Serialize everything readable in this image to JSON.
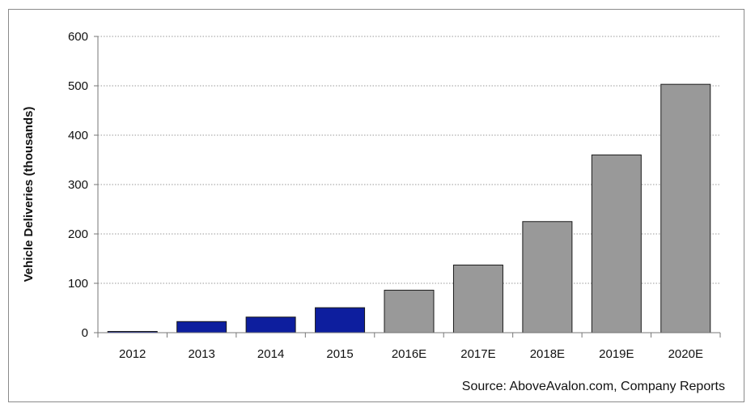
{
  "chart_data": {
    "type": "bar",
    "categories": [
      "2012",
      "2013",
      "2014",
      "2015",
      "2016E",
      "2017E",
      "2018E",
      "2019E",
      "2020E"
    ],
    "values": [
      2.5,
      22.5,
      31.6,
      50.6,
      86,
      137,
      225,
      360,
      503
    ],
    "bar_colors": [
      "#0d1e9e",
      "#0d1e9e",
      "#0d1e9e",
      "#0d1e9e",
      "#999999",
      "#999999",
      "#999999",
      "#999999",
      "#999999"
    ],
    "title": "",
    "xlabel": "",
    "ylabel": "Vehicle Deliveries (thousands)",
    "ylim": [
      0,
      600
    ],
    "yticks": [
      "0",
      "100",
      "200",
      "300",
      "400",
      "500",
      "600"
    ],
    "ytick_values": [
      0,
      100,
      200,
      300,
      400,
      500,
      600
    ],
    "grid": "horizontal-dotted",
    "legend": "none",
    "source_note": "Source: AboveAvalon.com, Company Reports"
  }
}
